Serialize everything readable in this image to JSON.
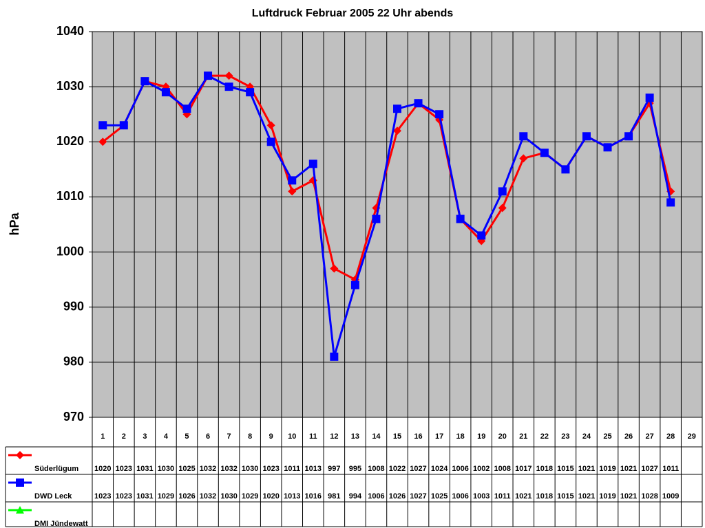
{
  "chart_data": {
    "type": "line",
    "title": "Luftdruck Februar 2005 22 Uhr abends",
    "y_label": "hPa",
    "categories": [
      "1",
      "2",
      "3",
      "4",
      "5",
      "6",
      "7",
      "8",
      "9",
      "10",
      "11",
      "12",
      "13",
      "14",
      "15",
      "16",
      "17",
      "18",
      "19",
      "20",
      "21",
      "22",
      "23",
      "24",
      "25",
      "26",
      "27",
      "28",
      "29"
    ],
    "ylim": [
      970,
      1040
    ],
    "yticks": [
      970,
      980,
      990,
      1000,
      1010,
      1020,
      1030,
      1040
    ],
    "grid": true,
    "series": [
      {
        "name": "Süderlügum",
        "color": "#ff0000",
        "marker": "diamond",
        "values": [
          1020,
          1023,
          1031,
          1030,
          1025,
          1032,
          1032,
          1030,
          1023,
          1011,
          1013,
          997,
          995,
          1008,
          1022,
          1027,
          1024,
          1006,
          1002,
          1008,
          1017,
          1018,
          1015,
          1021,
          1019,
          1021,
          1027,
          1011,
          null
        ]
      },
      {
        "name": "DWD Leck",
        "color": "#0000ff",
        "marker": "square",
        "values": [
          1023,
          1023,
          1031,
          1029,
          1026,
          1032,
          1030,
          1029,
          1020,
          1013,
          1016,
          981,
          994,
          1006,
          1026,
          1027,
          1025,
          1006,
          1003,
          1011,
          1021,
          1018,
          1015,
          1021,
          1019,
          1021,
          1028,
          1009,
          null
        ]
      },
      {
        "name": "DMI Jündewatt",
        "color": "#00ff00",
        "marker": "triangle",
        "values": [
          null,
          null,
          null,
          null,
          null,
          null,
          null,
          null,
          null,
          null,
          null,
          null,
          null,
          null,
          null,
          null,
          null,
          null,
          null,
          null,
          null,
          null,
          null,
          null,
          null,
          null,
          null,
          null,
          null
        ]
      }
    ]
  }
}
